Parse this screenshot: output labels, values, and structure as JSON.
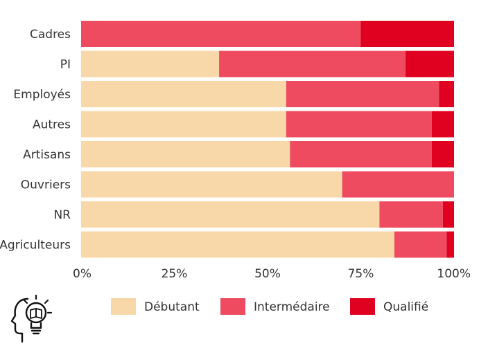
{
  "chart_data": {
    "type": "bar",
    "orientation": "horizontal",
    "stacked": true,
    "percent": true,
    "categories": [
      "Cadres",
      "PI",
      "Employés",
      "Autres",
      "Artisans",
      "Ouvriers",
      "NR",
      "Agriculteurs"
    ],
    "series": [
      {
        "name": "Débutant",
        "color": "#f8d8a8",
        "values": [
          0,
          37,
          55,
          55,
          56,
          70,
          80,
          84
        ]
      },
      {
        "name": "Intermédaire",
        "color": "#ee4b60",
        "values": [
          75,
          50,
          41,
          39,
          38,
          30,
          17,
          14
        ]
      },
      {
        "name": "Qualifié",
        "color": "#e00020",
        "values": [
          25,
          13,
          4,
          6,
          6,
          0,
          3,
          2
        ]
      }
    ],
    "xticks": [
      "0%",
      "25%",
      "50%",
      "75%",
      "100%"
    ],
    "xlim": [
      0,
      100
    ],
    "grid": false,
    "legend": "bottom"
  },
  "logo": {
    "icon": "head-book-bulb-icon"
  }
}
